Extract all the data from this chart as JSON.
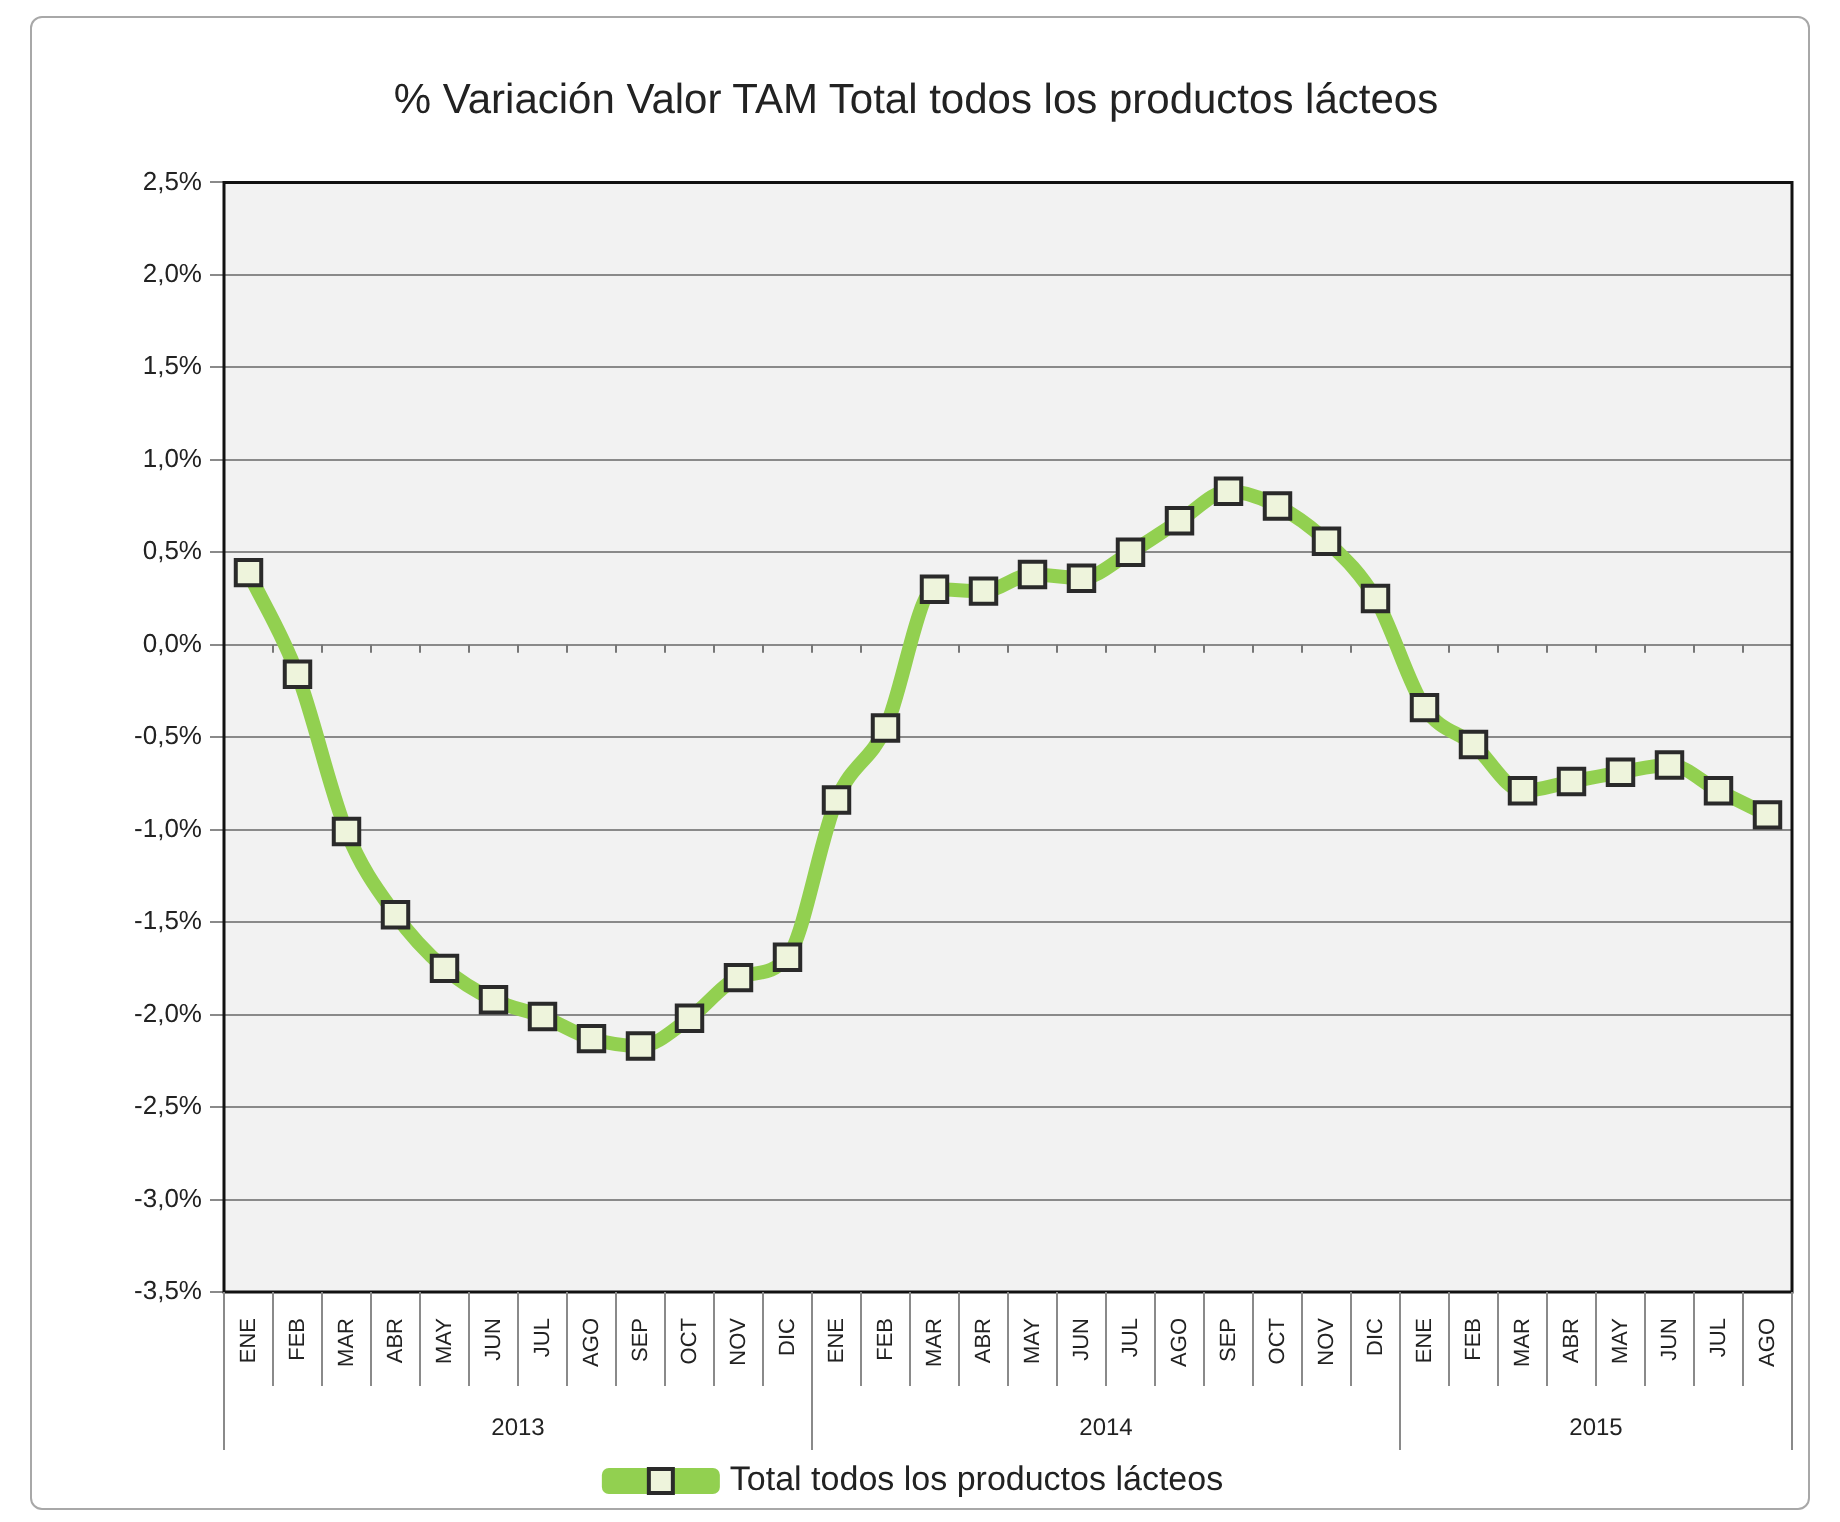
{
  "chart_data": {
    "type": "line",
    "title": "% Variación Valor TAM Total todos los productos lácteos",
    "categories": [
      "ENE",
      "FEB",
      "MAR",
      "ABR",
      "MAY",
      "JUN",
      "JUL",
      "AGO",
      "SEP",
      "OCT",
      "NOV",
      "DIC",
      "ENE",
      "FEB",
      "MAR",
      "ABR",
      "MAY",
      "JUN",
      "JUL",
      "AGO",
      "SEP",
      "OCT",
      "NOV",
      "DIC",
      "ENE",
      "FEB",
      "MAR",
      "ABR",
      "MAY",
      "JUN",
      "JUL",
      "AGO"
    ],
    "series": [
      {
        "name": "Total todos los productos lácteos",
        "color": "#92d050",
        "values": [
          0.39,
          -0.16,
          -1.01,
          -1.46,
          -1.75,
          -1.92,
          -2.01,
          -2.13,
          -2.17,
          -2.02,
          -1.8,
          -1.69,
          -0.84,
          -0.45,
          0.3,
          0.29,
          0.38,
          0.36,
          0.5,
          0.67,
          0.83,
          0.75,
          0.56,
          0.25,
          -0.34,
          -0.54,
          -0.79,
          -0.74,
          -0.69,
          -0.65,
          -0.79,
          -0.92
        ]
      }
    ],
    "ylim": [
      -3.5,
      2.5
    ],
    "yticks": [
      {
        "value": -3.5,
        "label": "-3,5%"
      },
      {
        "value": -3,
        "label": "-3,0%"
      },
      {
        "value": -2.5,
        "label": "-2,5%"
      },
      {
        "value": -2,
        "label": "-2,0%"
      },
      {
        "value": -1.5,
        "label": "-1,5%"
      },
      {
        "value": -1,
        "label": "-1,0%"
      },
      {
        "value": -0.5,
        "label": "-0,5%"
      },
      {
        "value": 0,
        "label": "0,0%"
      },
      {
        "value": 0.5,
        "label": "0,5%"
      },
      {
        "value": 1,
        "label": "1,0%"
      },
      {
        "value": 1.5,
        "label": "1,5%"
      },
      {
        "value": 2,
        "label": "2,0%"
      },
      {
        "value": 2.5,
        "label": "2,5%"
      }
    ],
    "annotations": [
      "2013",
      "2014",
      "2015"
    ],
    "grid": "y",
    "legend": "bottom",
    "marker": "square",
    "line_style": "solid"
  }
}
